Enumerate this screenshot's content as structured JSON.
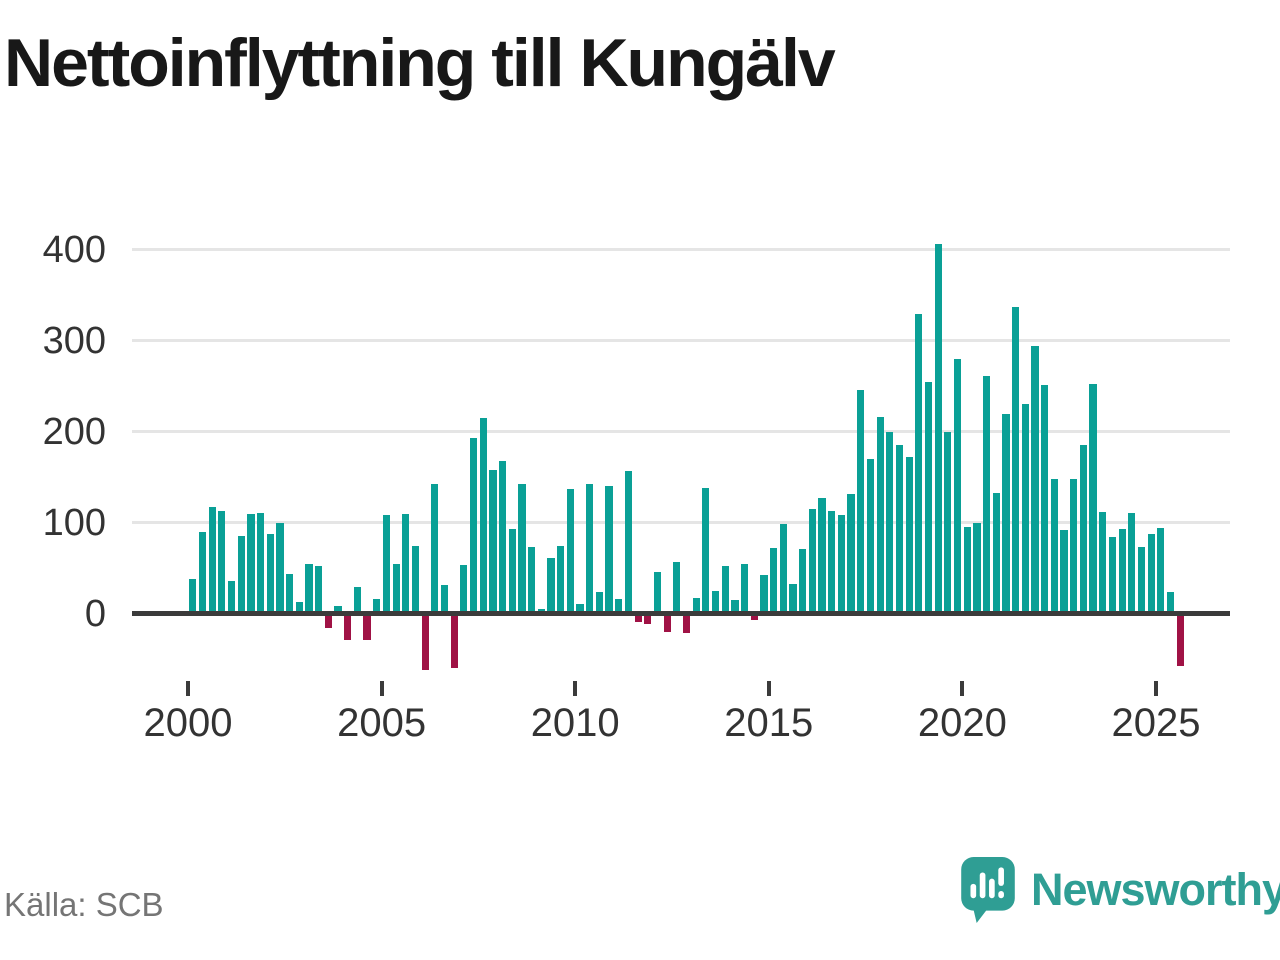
{
  "title": "Nettoinflyttning till Kungälv",
  "footer": {
    "source": "Källa: SCB"
  },
  "branding": {
    "name": "Newsworthy",
    "icon": "newsworthy-bar-chart-bubble-icon"
  },
  "colors": {
    "bar_positive": "#0aa096",
    "bar_negative": "#a01245",
    "axis_line": "#3b3b3b",
    "gridline": "#e5e5e5",
    "tick_label": "#333333",
    "source_text": "#757575",
    "logo": "#2f9e94",
    "title_text": "#181818"
  },
  "chart_data": {
    "type": "bar",
    "title": "Nettoinflyttning till Kungälv",
    "frequency": "quarterly",
    "start_period": "2000Q1",
    "end_period": "2025Q3",
    "x_tick_labels": [
      "2000",
      "2005",
      "2010",
      "2015",
      "2020",
      "2025"
    ],
    "y_ticks": [
      0,
      100,
      200,
      300,
      400
    ],
    "ylim": [
      -80,
      430
    ],
    "grid": "horizontal",
    "legend": "none",
    "series": [
      {
        "name": "Nettoinflyttning",
        "values": [
          38,
          90,
          117,
          113,
          36,
          85,
          109,
          111,
          87,
          100,
          43,
          13,
          54,
          52,
          -16,
          8,
          -29,
          29,
          -29,
          16,
          108,
          54,
          110,
          74,
          -62,
          143,
          31,
          -60,
          53,
          193,
          215,
          158,
          168,
          93,
          143,
          73,
          5,
          61,
          74,
          137,
          11,
          142,
          24,
          140,
          16,
          157,
          -9,
          -12,
          46,
          -20,
          57,
          -21,
          17,
          138,
          25,
          52,
          15,
          54,
          -7,
          42,
          72,
          98,
          33,
          71,
          115,
          127,
          113,
          108,
          132,
          246,
          170,
          216,
          200,
          185,
          172,
          330,
          255,
          407,
          200,
          280,
          95,
          100,
          261,
          133,
          219,
          337,
          231,
          294,
          251,
          148,
          92,
          148,
          185,
          253,
          112,
          84,
          93,
          111,
          73,
          87,
          94,
          24,
          -58
        ]
      }
    ]
  }
}
